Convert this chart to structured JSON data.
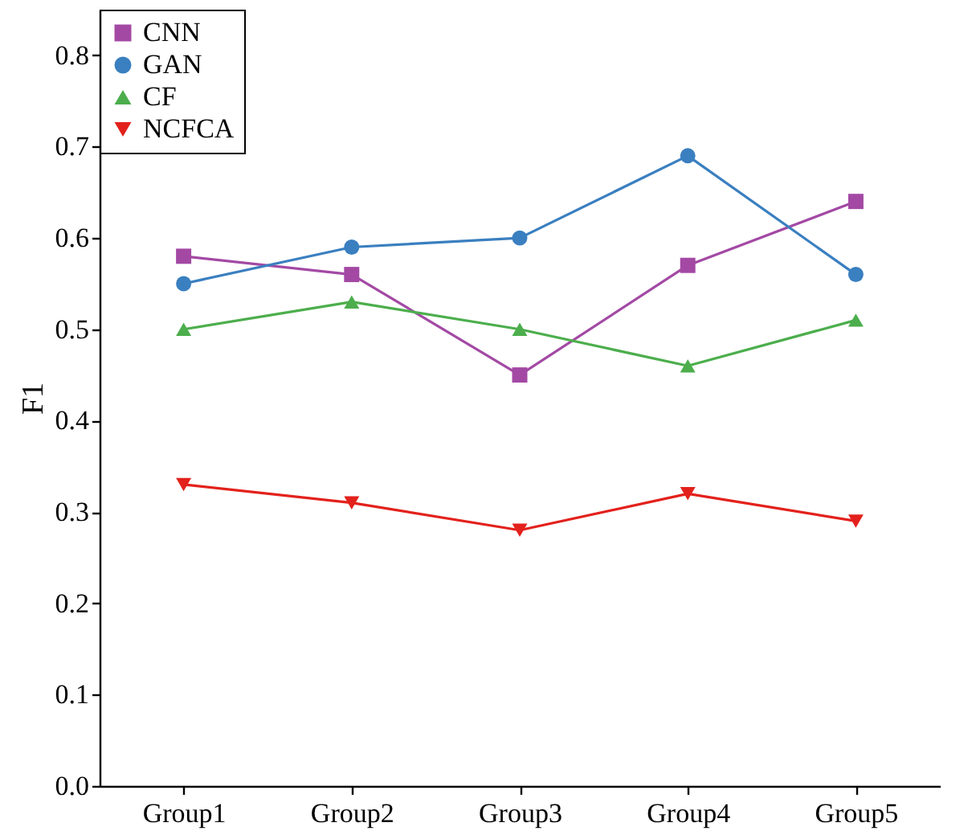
{
  "chart_data": {
    "type": "line",
    "ylabel": "F1",
    "categories": [
      "Group1",
      "Group2",
      "Group3",
      "Group4",
      "Group5"
    ],
    "ylim": [
      0,
      0.85
    ],
    "yticks": [
      {
        "value": 0,
        "label": "0.0"
      },
      {
        "value": 0.1,
        "label": "0.1"
      },
      {
        "value": 0.2,
        "label": "0.2"
      },
      {
        "value": 0.3,
        "label": "0.3"
      },
      {
        "value": 0.4,
        "label": "0.4"
      },
      {
        "value": 0.5,
        "label": "0.5"
      },
      {
        "value": 0.6,
        "label": "0.6"
      },
      {
        "value": 0.7,
        "label": "0.7"
      },
      {
        "value": 0.8,
        "label": "0.8"
      }
    ],
    "grid": false,
    "legend": "top left",
    "line_style": "solid",
    "series": [
      {
        "name": "CNN",
        "color": "#a349a4",
        "marker": "square",
        "values": [
          0.58,
          0.56,
          0.45,
          0.57,
          0.64
        ]
      },
      {
        "name": "GAN",
        "color": "#3a7fc0",
        "marker": "circle",
        "values": [
          0.55,
          0.59,
          0.6,
          0.69,
          0.56
        ]
      },
      {
        "name": "CF",
        "color": "#4cae4c",
        "marker": "triangle",
        "values": [
          0.5,
          0.53,
          0.5,
          0.46,
          0.51
        ]
      },
      {
        "name": "NCFCA",
        "color": "#e3211c",
        "marker": "triangle-down",
        "values": [
          0.33,
          0.31,
          0.28,
          0.32,
          0.29
        ]
      }
    ]
  }
}
